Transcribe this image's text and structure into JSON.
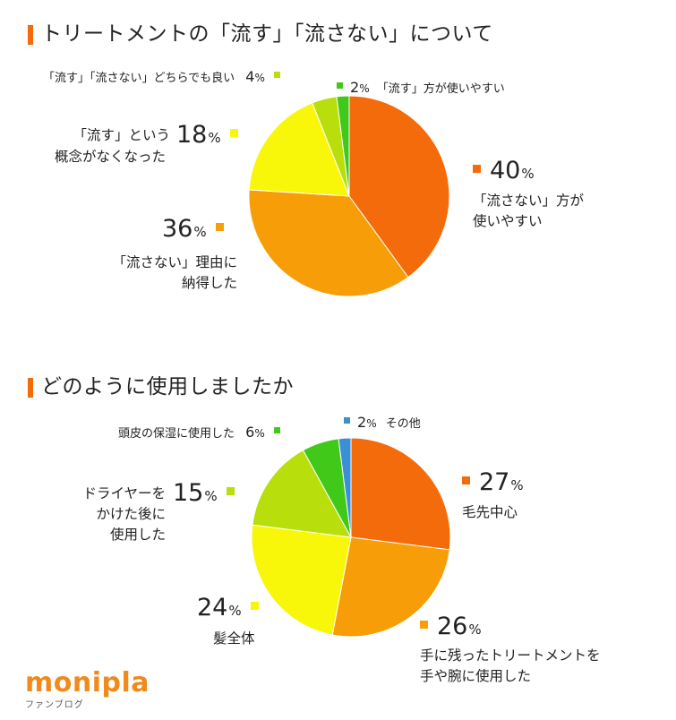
{
  "colors": {
    "accent": "#f46b0c",
    "orange_dark": "#f46b0c",
    "orange": "#f79d08",
    "yellow": "#f8f70a",
    "lime": "#b8de0c",
    "green": "#41c91a",
    "blue": "#3a8fd6"
  },
  "chart_data": [
    {
      "type": "pie",
      "title": "トリートメントの「流す」「流さない」について",
      "slices": [
        {
          "label_lines": [
            "「流さない」方が",
            "使いやすい"
          ],
          "value": 40,
          "color": "#f46b0c"
        },
        {
          "label_lines": [
            "「流さない」理由に",
            "納得した"
          ],
          "value": 36,
          "color": "#f79d08"
        },
        {
          "label_lines": [
            "「流す」という",
            "概念がなくなった"
          ],
          "value": 18,
          "color": "#f8f70a"
        },
        {
          "label_lines": [
            "「流す」「流さない」どちらでも良い"
          ],
          "value": 4,
          "color": "#b8de0c"
        },
        {
          "label_lines": [
            "「流す」方が使いやすい"
          ],
          "value": 2,
          "color": "#41c91a"
        }
      ]
    },
    {
      "type": "pie",
      "title": "どのように使用しましたか",
      "slices": [
        {
          "label_lines": [
            "毛先中心"
          ],
          "value": 27,
          "color": "#f46b0c"
        },
        {
          "label_lines": [
            "手に残ったトリートメントを",
            "手や腕に使用した"
          ],
          "value": 26,
          "color": "#f79d08"
        },
        {
          "label_lines": [
            "髪全体"
          ],
          "value": 24,
          "color": "#f8f70a"
        },
        {
          "label_lines": [
            "ドライヤーを",
            "かけた後に",
            "使用した"
          ],
          "value": 15,
          "color": "#b8de0c"
        },
        {
          "label_lines": [
            "頭皮の保湿に使用した"
          ],
          "value": 6,
          "color": "#41c91a"
        },
        {
          "label_lines": [
            "その他"
          ],
          "value": 2,
          "color": "#3a8fd6"
        }
      ]
    }
  ],
  "percent_unit": "%",
  "logo": {
    "name": "monipla",
    "subtitle": "ファンブログ"
  }
}
